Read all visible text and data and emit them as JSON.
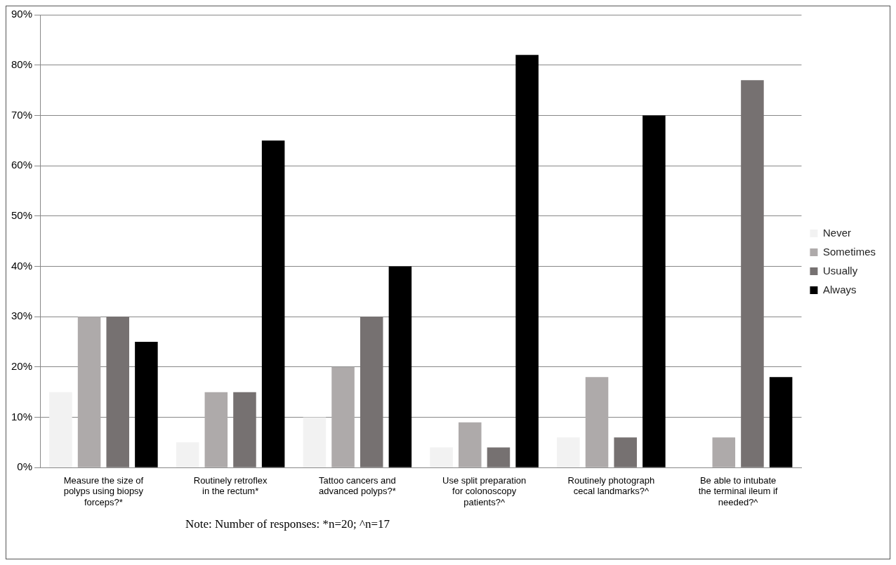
{
  "chart_data": {
    "type": "bar",
    "categories": [
      "Measure the size of polyps using biopsy forceps?*",
      "Routinely retroflex in the rectum*",
      "Tattoo cancers and advanced polyps?*",
      "Use split preparation for colonoscopy patients?^",
      "Routinely photograph cecal landmarks?^",
      "Be able to intubate the terminal ileum if needed?^"
    ],
    "series": [
      {
        "name": "Never",
        "color": "#f2f2f2",
        "values": [
          15,
          5,
          10,
          4,
          6,
          0
        ]
      },
      {
        "name": "Sometimes",
        "color": "#aeaaaa",
        "values": [
          30,
          15,
          20,
          9,
          18,
          6
        ]
      },
      {
        "name": "Usually",
        "color": "#767171",
        "values": [
          30,
          15,
          30,
          4,
          6,
          77
        ]
      },
      {
        "name": "Always",
        "color": "#000000",
        "values": [
          25,
          65,
          40,
          82,
          70,
          18
        ]
      }
    ],
    "ylim": [
      0,
      90
    ],
    "yticks": [
      {
        "value": 0,
        "label": "0%"
      },
      {
        "value": 10,
        "label": "10%"
      },
      {
        "value": 20,
        "label": "20%"
      },
      {
        "value": 30,
        "label": "30%"
      },
      {
        "value": 40,
        "label": "40%"
      },
      {
        "value": 50,
        "label": "50%"
      },
      {
        "value": 60,
        "label": "60%"
      },
      {
        "value": 70,
        "label": "70%"
      },
      {
        "value": 80,
        "label": "80%"
      },
      {
        "value": 90,
        "label": "90%"
      }
    ],
    "grid": "y",
    "legend": "right",
    "annotations": [
      "Note: Number of responses: *n=20; ^n=17"
    ]
  }
}
